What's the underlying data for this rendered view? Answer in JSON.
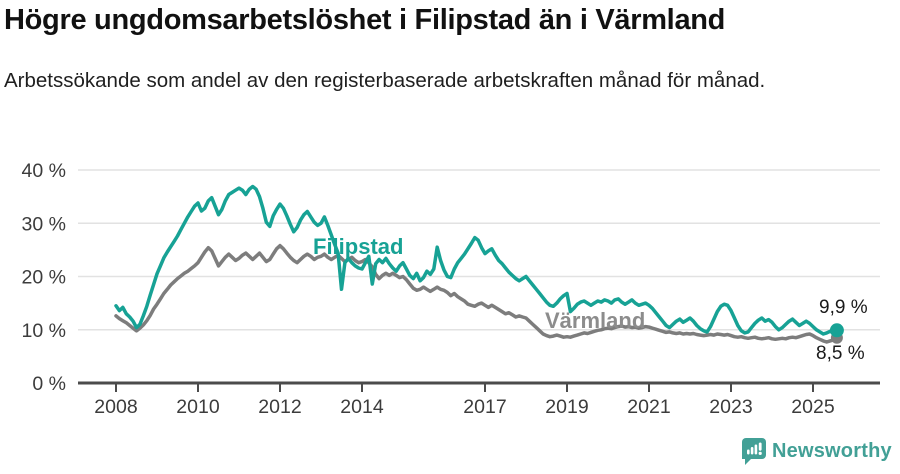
{
  "header": {
    "title": "Högre ungdomsarbetslöshet i Filipstad än i Värmland",
    "subtitle": "Arbetssökande som andel av den registerbaserade arbetskraften månad för månad."
  },
  "footer": {
    "brand": "Newsworthy"
  },
  "colors": {
    "filipstad": "#17a295",
    "varmland": "#7d7d7d",
    "grid": "#e2e2e2",
    "axis": "#4b4b4b",
    "tick_text": "#3c3c3c",
    "logo": "#42a096",
    "annotation": "#1a1a1a"
  },
  "chart_data": {
    "type": "line",
    "title": "Högre ungdomsarbetslöshet i Filipstad än i Värmland",
    "subtitle": "Arbetssökande som andel av den registerbaserade arbetskraften månad för månad.",
    "unit": "% av registerbaserad arbetskraft",
    "x_interval": "monthly",
    "x_start_year": 2008,
    "xlim": [
      2008,
      2026
    ],
    "ylim": [
      0,
      42
    ],
    "grid": "horizontal",
    "legend_position": "inline-labels",
    "y_ticks": [
      {
        "value": 40,
        "label": "40 %"
      },
      {
        "value": 30,
        "label": "30 %"
      },
      {
        "value": 20,
        "label": "20 %"
      },
      {
        "value": 10,
        "label": "10 %"
      },
      {
        "value": 0,
        "label": "0 %"
      }
    ],
    "x_ticks": [
      {
        "year": 2008,
        "label": "2008"
      },
      {
        "year": 2010,
        "label": "2010"
      },
      {
        "year": 2012,
        "label": "2012"
      },
      {
        "year": 2014,
        "label": "2014"
      },
      {
        "year": 2017,
        "label": "2017"
      },
      {
        "year": 2019,
        "label": "2019"
      },
      {
        "year": 2021,
        "label": "2021"
      },
      {
        "year": 2023,
        "label": "2023"
      },
      {
        "year": 2025,
        "label": "2025"
      }
    ],
    "series": [
      {
        "id": "varmland",
        "name": "Värmland",
        "color": "#7d7d7d",
        "end_label": "8,5 %",
        "end_value": 8.5,
        "values": [
          12.6,
          12.1,
          11.7,
          11.3,
          10.8,
          10.3,
          9.8,
          10.3,
          10.9,
          11.7,
          12.7,
          13.9,
          14.8,
          15.8,
          16.8,
          17.6,
          18.4,
          19.0,
          19.6,
          20.1,
          20.6,
          21.0,
          21.5,
          22.0,
          22.6,
          23.6,
          24.6,
          25.4,
          24.8,
          23.4,
          22.0,
          22.8,
          23.6,
          24.2,
          23.6,
          23.0,
          23.4,
          24.0,
          24.4,
          23.8,
          23.2,
          23.8,
          24.4,
          23.6,
          22.8,
          23.2,
          24.2,
          25.2,
          25.8,
          25.2,
          24.4,
          23.6,
          23.0,
          22.6,
          23.2,
          23.8,
          24.2,
          23.8,
          23.2,
          23.6,
          23.8,
          24.2,
          23.6,
          23.2,
          23.6,
          24.0,
          23.4,
          22.8,
          23.2,
          23.6,
          23.0,
          22.6,
          22.8,
          23.2,
          22.6,
          21.8,
          20.4,
          19.6,
          20.2,
          20.6,
          20.2,
          20.6,
          20.2,
          19.8,
          20.0,
          19.4,
          18.6,
          17.8,
          17.4,
          17.6,
          18.0,
          17.6,
          17.2,
          17.6,
          18.0,
          17.6,
          17.4,
          17.0,
          16.4,
          16.8,
          16.2,
          15.8,
          15.4,
          14.8,
          14.6,
          14.4,
          14.8,
          15.0,
          14.6,
          14.2,
          14.6,
          14.2,
          13.8,
          13.4,
          13.0,
          13.2,
          12.8,
          12.4,
          12.6,
          12.4,
          12.2,
          11.6,
          11.0,
          10.4,
          9.8,
          9.2,
          8.9,
          8.7,
          8.8,
          9.0,
          8.8,
          8.6,
          8.7,
          8.6,
          8.8,
          9.0,
          9.2,
          9.4,
          9.3,
          9.5,
          9.7,
          9.9,
          10.0,
          10.2,
          10.3,
          10.2,
          10.4,
          10.6,
          10.7,
          10.5,
          10.6,
          10.4,
          10.5,
          10.3,
          10.4,
          10.6,
          10.5,
          10.3,
          10.1,
          9.9,
          9.7,
          9.5,
          9.6,
          9.4,
          9.3,
          9.4,
          9.2,
          9.3,
          9.2,
          9.3,
          9.1,
          9.0,
          8.9,
          9.0,
          9.1,
          9.0,
          9.2,
          9.1,
          9.0,
          9.1,
          8.9,
          8.7,
          8.6,
          8.7,
          8.5,
          8.4,
          8.5,
          8.6,
          8.4,
          8.3,
          8.4,
          8.5,
          8.3,
          8.2,
          8.3,
          8.4,
          8.3,
          8.5,
          8.6,
          8.5,
          8.7,
          8.9,
          9.1,
          9.2,
          8.9,
          8.5,
          8.2,
          7.9,
          7.7,
          7.9,
          8.1,
          8.5
        ]
      },
      {
        "id": "filipstad",
        "name": "Filipstad",
        "color": "#17a295",
        "end_label": "9,9 %",
        "end_value": 9.9,
        "values": [
          14.5,
          13.6,
          14.2,
          13.0,
          12.4,
          11.6,
          10.4,
          11.0,
          12.6,
          14.4,
          16.5,
          18.5,
          20.5,
          22.0,
          23.5,
          24.6,
          25.6,
          26.6,
          27.6,
          28.8,
          30.0,
          31.2,
          32.2,
          33.2,
          33.8,
          32.3,
          32.8,
          34.2,
          34.8,
          33.2,
          31.6,
          32.6,
          34.2,
          35.4,
          35.8,
          36.2,
          36.6,
          36.2,
          35.4,
          36.4,
          36.9,
          36.4,
          35.0,
          32.8,
          30.2,
          29.4,
          31.4,
          32.6,
          33.6,
          32.8,
          31.4,
          29.8,
          28.4,
          29.2,
          30.6,
          31.6,
          32.2,
          31.2,
          30.2,
          29.6,
          30.0,
          31.2,
          29.6,
          27.8,
          26.0,
          24.4,
          17.6,
          22.6,
          23.4,
          22.6,
          22.0,
          21.6,
          21.4,
          22.6,
          23.8,
          18.6,
          22.4,
          23.2,
          22.6,
          23.4,
          22.4,
          21.6,
          21.0,
          22.0,
          22.6,
          21.4,
          20.2,
          19.6,
          20.6,
          19.2,
          19.8,
          21.0,
          20.4,
          21.4,
          25.5,
          23.0,
          21.2,
          20.0,
          19.8,
          21.4,
          22.6,
          23.4,
          24.2,
          25.2,
          26.2,
          27.3,
          26.8,
          25.4,
          24.3,
          24.8,
          25.2,
          24.0,
          23.0,
          22.4,
          21.6,
          20.8,
          20.2,
          19.6,
          19.2,
          19.6,
          20.0,
          19.2,
          18.4,
          17.6,
          16.8,
          16.0,
          15.2,
          14.6,
          14.4,
          15.0,
          15.8,
          16.4,
          16.8,
          13.4,
          14.0,
          14.8,
          15.2,
          15.4,
          15.0,
          14.6,
          15.0,
          15.4,
          15.2,
          15.6,
          15.4,
          15.0,
          15.6,
          15.8,
          15.2,
          14.8,
          15.2,
          15.6,
          15.0,
          14.6,
          14.8,
          15.0,
          14.6,
          14.0,
          13.2,
          12.4,
          11.6,
          10.8,
          10.4,
          11.0,
          11.6,
          12.0,
          11.4,
          11.8,
          12.2,
          11.6,
          10.8,
          10.2,
          9.8,
          9.6,
          10.6,
          12.0,
          13.4,
          14.4,
          14.8,
          14.6,
          13.6,
          12.2,
          10.8,
          9.8,
          9.4,
          9.6,
          10.4,
          11.2,
          11.8,
          12.2,
          11.6,
          11.9,
          11.4,
          10.6,
          10.0,
          10.4,
          11.0,
          11.6,
          12.0,
          11.4,
          10.8,
          11.2,
          11.6,
          11.2,
          10.6,
          10.0,
          9.6,
          9.2,
          9.4,
          9.7,
          9.5,
          9.9
        ]
      }
    ]
  }
}
